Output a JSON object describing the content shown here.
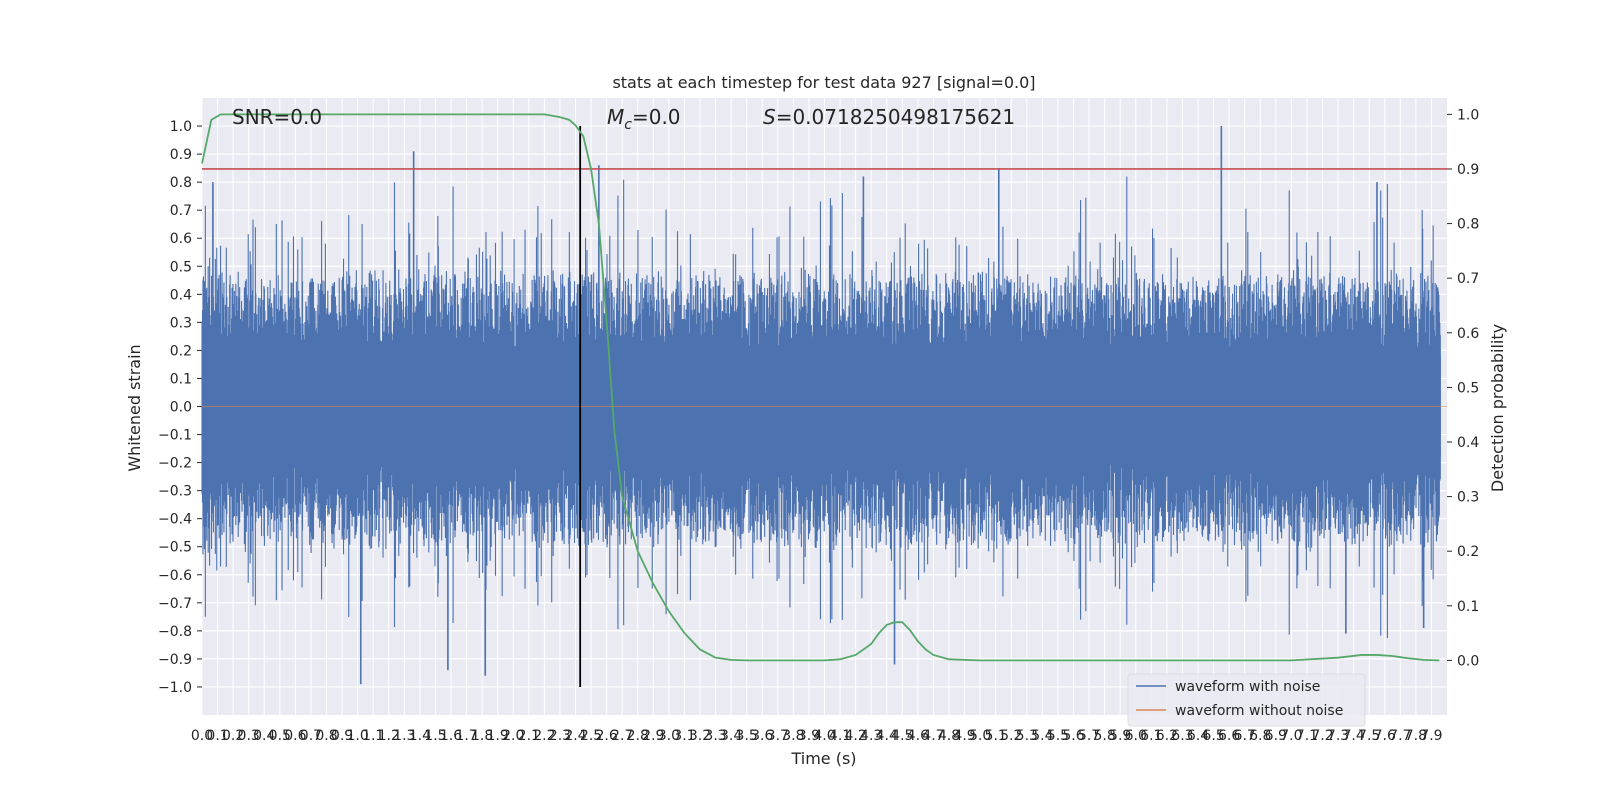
{
  "chart_data": {
    "type": "line",
    "title": "stats at each timestep for test data 927 [signal=0.0]",
    "xlabel": "Time (s)",
    "ylabel_left": "Whitened strain",
    "ylabel_right": "Detection probability",
    "xlim": [
      0.0,
      8.0
    ],
    "ylim_left": [
      -1.1,
      1.1
    ],
    "ylim_right": [
      -0.1,
      1.03
    ],
    "grid": true,
    "x_ticks": [
      "0.0",
      "0.1",
      "0.2",
      "0.3",
      "0.4",
      "0.5",
      "0.6",
      "0.7",
      "0.8",
      "0.9",
      "1.0",
      "1.1",
      "1.2",
      "1.3",
      "1.4",
      "1.5",
      "1.6",
      "1.7",
      "1.8",
      "1.9",
      "2.0",
      "2.1",
      "2.2",
      "2.3",
      "2.4",
      "2.5",
      "2.6",
      "2.7",
      "2.8",
      "2.9",
      "3.0",
      "3.1",
      "3.2",
      "3.3",
      "3.4",
      "3.5",
      "3.6",
      "3.7",
      "3.8",
      "3.9",
      "4.0",
      "4.1",
      "4.2",
      "4.3",
      "4.4",
      "4.5",
      "4.6",
      "4.7",
      "4.8",
      "4.9",
      "5.0",
      "5.1",
      "5.2",
      "5.3",
      "5.4",
      "5.5",
      "5.6",
      "5.7",
      "5.8",
      "5.9",
      "6.0",
      "6.1",
      "6.2",
      "6.3",
      "6.4",
      "6.5",
      "6.6",
      "6.7",
      "6.8",
      "6.9",
      "7.0",
      "7.1",
      "7.2",
      "7.3",
      "7.4",
      "7.5",
      "7.6",
      "7.7",
      "7.8",
      "7.9"
    ],
    "y_ticks_left": [
      "1.0",
      "0.9",
      "0.8",
      "0.7",
      "0.6",
      "0.5",
      "0.4",
      "0.3",
      "0.2",
      "0.1",
      "0.0",
      "−0.1",
      "−0.2",
      "−0.3",
      "−0.4",
      "−0.5",
      "−0.6",
      "−0.7",
      "−0.8",
      "−0.9",
      "−1.0"
    ],
    "y_ticks_right": [
      "1.0",
      "0.9",
      "0.8",
      "0.7",
      "0.6",
      "0.5",
      "0.4",
      "0.3",
      "0.2",
      "0.1",
      "0.0"
    ],
    "annotations": {
      "snr": "SNR=0.0",
      "mc_symbol": "M",
      "mc_sub": "c",
      "mc_value": "=0.0",
      "s_symbol": "S",
      "s_value": "=0.0718250498175621"
    },
    "threshold_line": {
      "axis": "right",
      "y": 0.9,
      "color": "#c44e52"
    },
    "vertical_line": {
      "x": 2.43,
      "color": "#000000"
    },
    "legend": {
      "placement": "lower-right",
      "entries": [
        {
          "label": "waveform with noise",
          "color": "#4c72b0"
        },
        {
          "label": "waveform without noise",
          "color": "#dd8452"
        }
      ]
    },
    "series": [
      {
        "name": "waveform with noise",
        "axis": "left",
        "color": "#4c72b0",
        "style": "dense noise, envelope approx ±0.6, peaks to 1.0 / -1.0",
        "highlight_peaks": [
          {
            "x": 0.07,
            "y": 0.8
          },
          {
            "x": 1.36,
            "y": 0.91
          },
          {
            "x": 2.55,
            "y": 0.86
          },
          {
            "x": 4.25,
            "y": 0.82
          },
          {
            "x": 5.12,
            "y": 0.85
          },
          {
            "x": 6.55,
            "y": 1.0
          },
          {
            "x": 7.55,
            "y": 0.8
          },
          {
            "x": 1.02,
            "y": -0.99
          },
          {
            "x": 1.58,
            "y": -0.94
          },
          {
            "x": 1.82,
            "y": -0.96
          },
          {
            "x": 4.45,
            "y": -0.92
          },
          {
            "x": 7.35,
            "y": -0.81
          },
          {
            "x": 7.85,
            "y": -0.79
          }
        ]
      },
      {
        "name": "detection probability",
        "axis": "right",
        "color": "#55a868",
        "x": [
          0.0,
          0.06,
          0.12,
          0.2,
          0.4,
          1.0,
          1.5,
          2.0,
          2.2,
          2.3,
          2.36,
          2.4,
          2.45,
          2.5,
          2.55,
          2.6,
          2.65,
          2.7,
          2.8,
          2.9,
          3.0,
          3.1,
          3.2,
          3.3,
          3.4,
          3.5,
          3.7,
          4.0,
          4.1,
          4.2,
          4.3,
          4.35,
          4.4,
          4.45,
          4.5,
          4.55,
          4.6,
          4.65,
          4.7,
          4.8,
          5.0,
          6.0,
          7.0,
          7.3,
          7.45,
          7.55,
          7.65,
          7.75,
          7.85,
          7.95
        ],
        "y": [
          0.91,
          0.99,
          1.0,
          1.0,
          1.0,
          1.0,
          1.0,
          1.0,
          1.0,
          0.995,
          0.99,
          0.98,
          0.96,
          0.9,
          0.8,
          0.62,
          0.42,
          0.3,
          0.2,
          0.14,
          0.09,
          0.05,
          0.02,
          0.005,
          0.001,
          0.0,
          0.0,
          0.0,
          0.002,
          0.01,
          0.03,
          0.05,
          0.065,
          0.07,
          0.07,
          0.055,
          0.035,
          0.02,
          0.01,
          0.002,
          0.0,
          0.0,
          0.0,
          0.005,
          0.01,
          0.01,
          0.008,
          0.004,
          0.001,
          0.0
        ]
      }
    ]
  }
}
